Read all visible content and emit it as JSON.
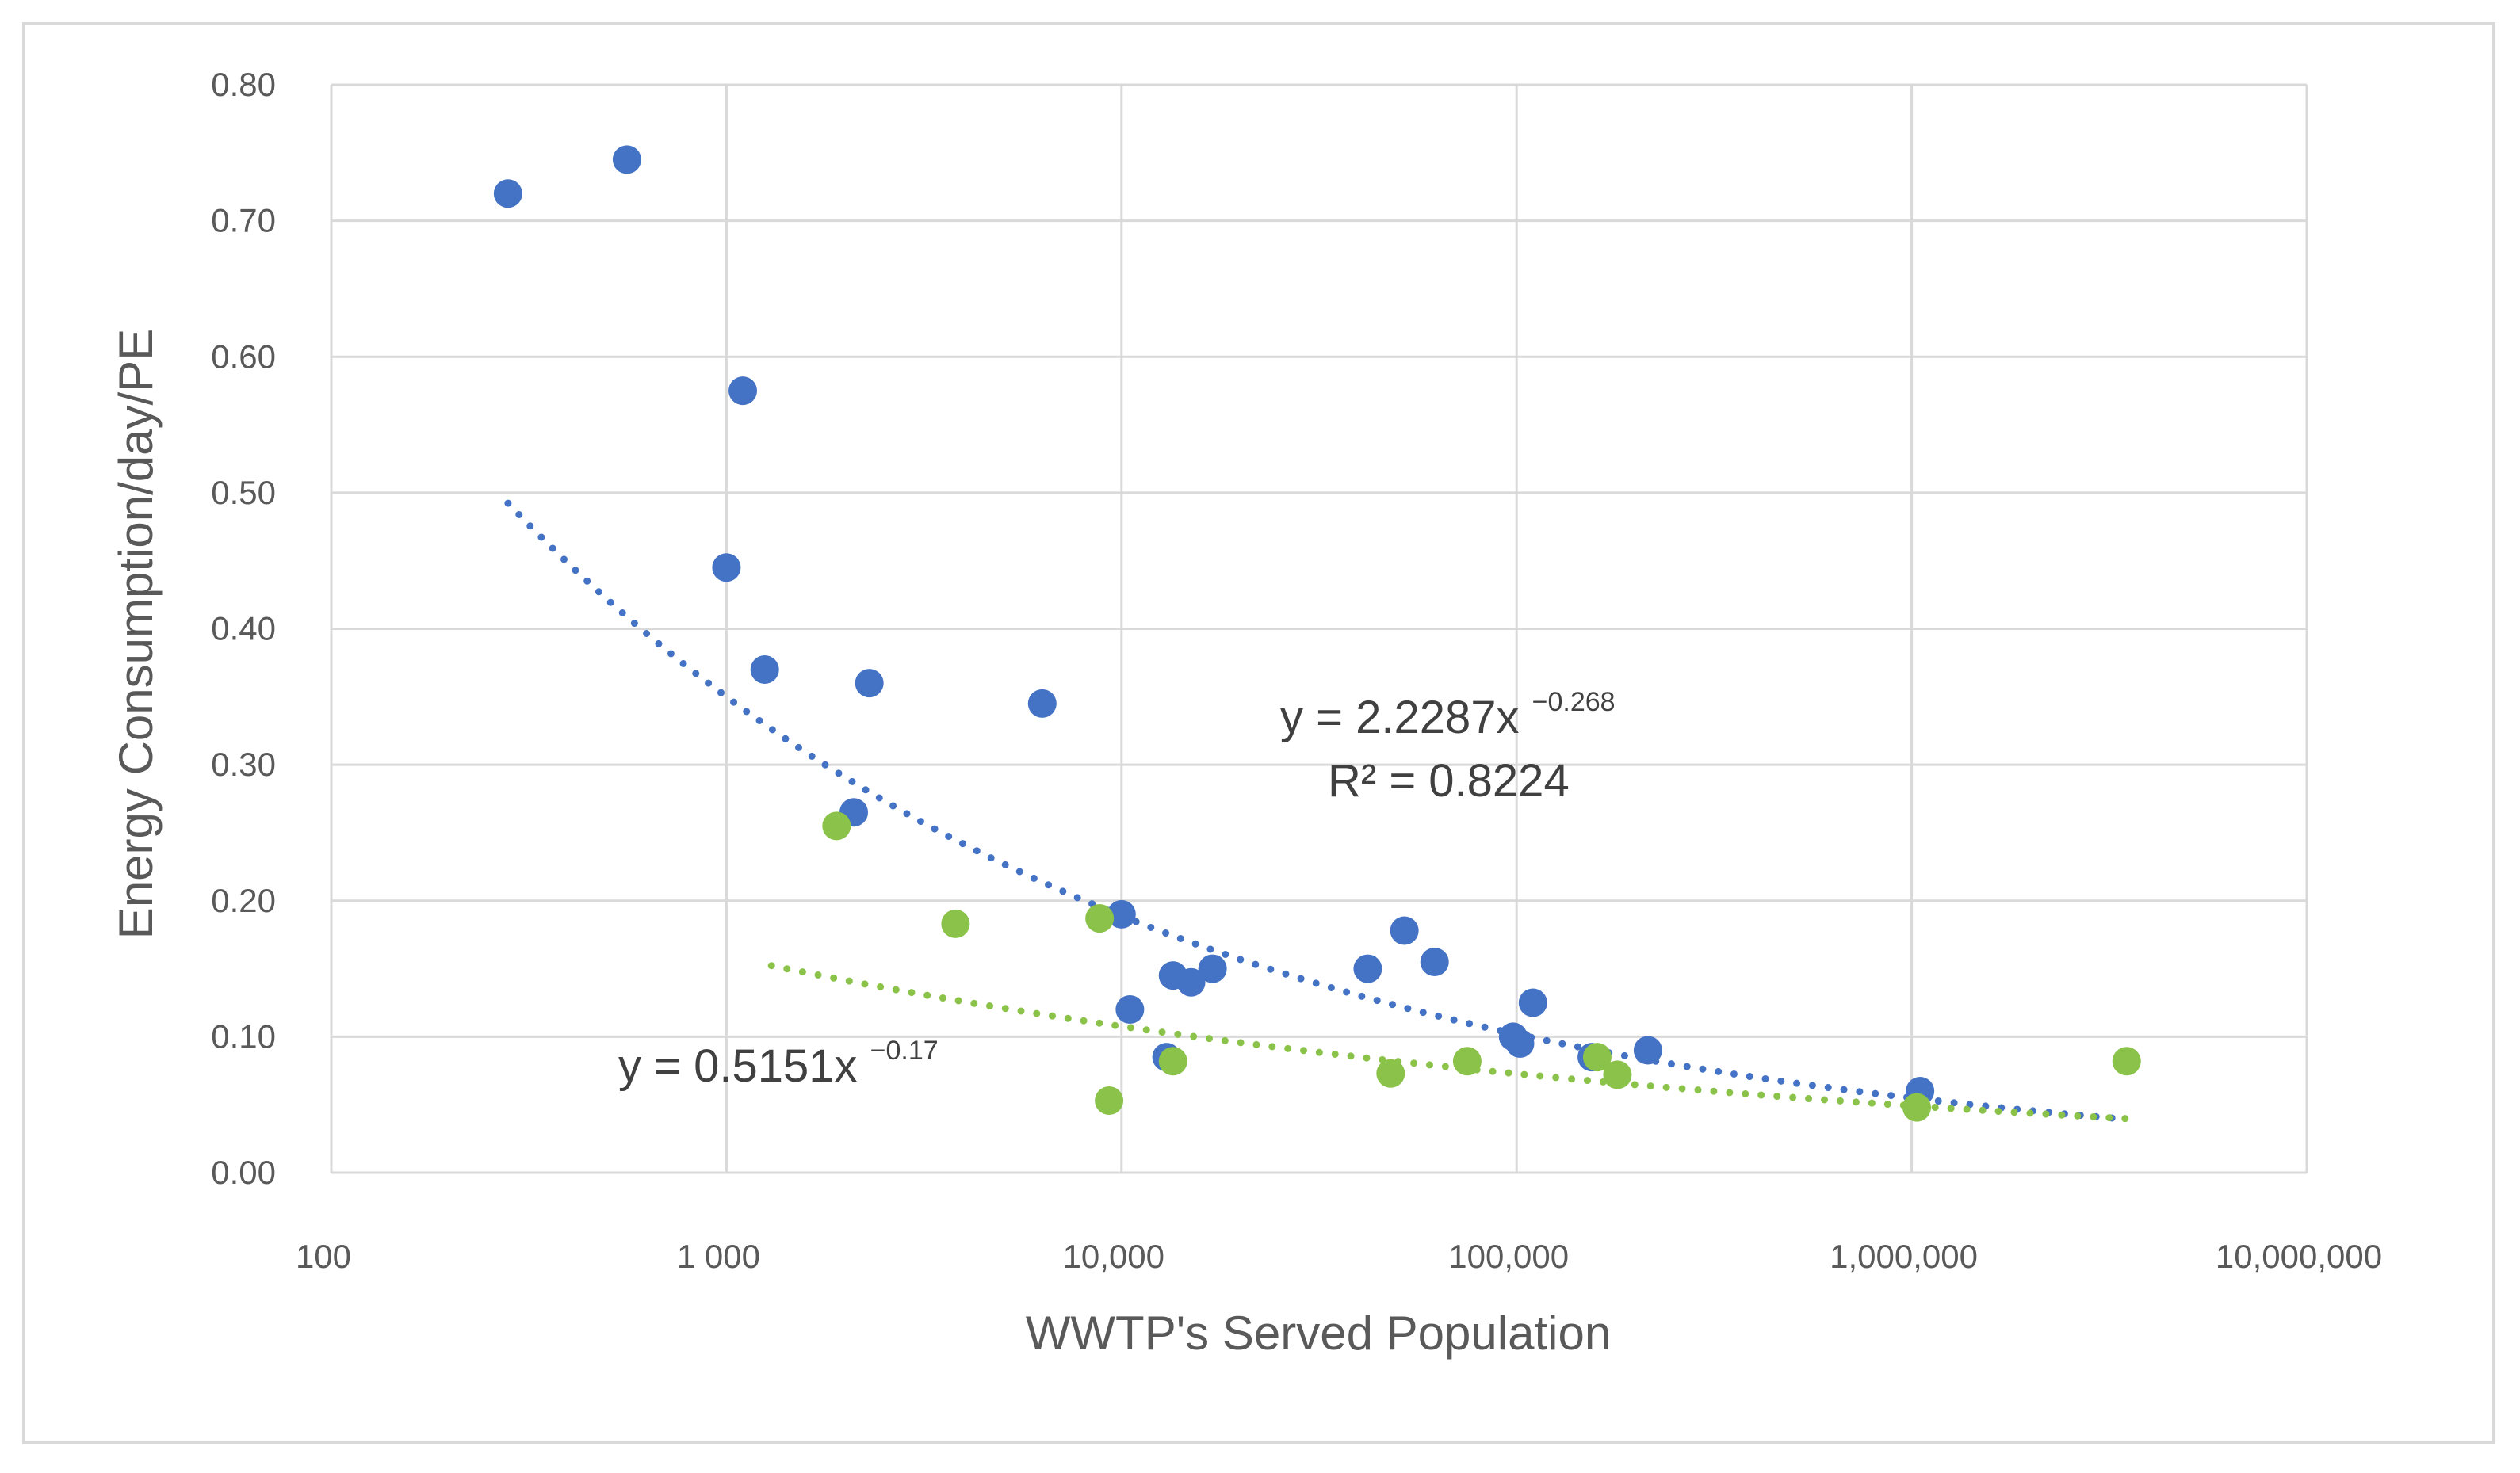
{
  "chart_data": {
    "type": "scatter",
    "title": "",
    "xlabel": "WWTP's Served Population",
    "ylabel": "Energy Consumption/day/PE",
    "x_scale": "log",
    "xlim": [
      100,
      10000000
    ],
    "ylim": [
      0,
      0.8
    ],
    "grid": true,
    "x_tick_labels": [
      "100",
      "1 000",
      "10,000",
      "100,000",
      "1,000,000",
      "10,000,000"
    ],
    "y_tick_labels": [
      "0.00",
      "0.10",
      "0.20",
      "0.30",
      "0.40",
      "0.50",
      "0.60",
      "0.70",
      "0.80"
    ],
    "series": [
      {
        "name": "blue",
        "color": "#4472C4",
        "points": [
          [
            280,
            0.72
          ],
          [
            560,
            0.745
          ],
          [
            1100,
            0.575
          ],
          [
            1000,
            0.445
          ],
          [
            1250,
            0.37
          ],
          [
            2300,
            0.36
          ],
          [
            2100,
            0.265
          ],
          [
            6300,
            0.345
          ],
          [
            10000,
            0.19
          ],
          [
            10500,
            0.12
          ],
          [
            13000,
            0.085
          ],
          [
            13500,
            0.145
          ],
          [
            15000,
            0.14
          ],
          [
            17000,
            0.15
          ],
          [
            42000,
            0.15
          ],
          [
            52000,
            0.178
          ],
          [
            62000,
            0.155
          ],
          [
            98000,
            0.1
          ],
          [
            102000,
            0.095
          ],
          [
            110000,
            0.125
          ],
          [
            155000,
            0.085
          ],
          [
            215000,
            0.09
          ],
          [
            1050000,
            0.06
          ]
        ],
        "trendline": {
          "equation": "y = 2.2287x",
          "exponent": "−0.268",
          "r2": "R² = 0.8224",
          "a": 2.2287,
          "b": -0.268,
          "x_range": [
            280,
            3500000
          ]
        }
      },
      {
        "name": "green",
        "color": "#8BC34A",
        "points": [
          [
            1900,
            0.255
          ],
          [
            3800,
            0.183
          ],
          [
            8800,
            0.187
          ],
          [
            9300,
            0.053
          ],
          [
            13500,
            0.082
          ],
          [
            48000,
            0.073
          ],
          [
            75000,
            0.082
          ],
          [
            160000,
            0.085
          ],
          [
            180000,
            0.072
          ],
          [
            1030000,
            0.048
          ],
          [
            3500000,
            0.082
          ]
        ],
        "trendline": {
          "equation": "y = 0.5151x",
          "exponent": "−0.17",
          "a": 0.5151,
          "b": -0.17,
          "x_range": [
            1300,
            3500000
          ]
        }
      }
    ]
  }
}
